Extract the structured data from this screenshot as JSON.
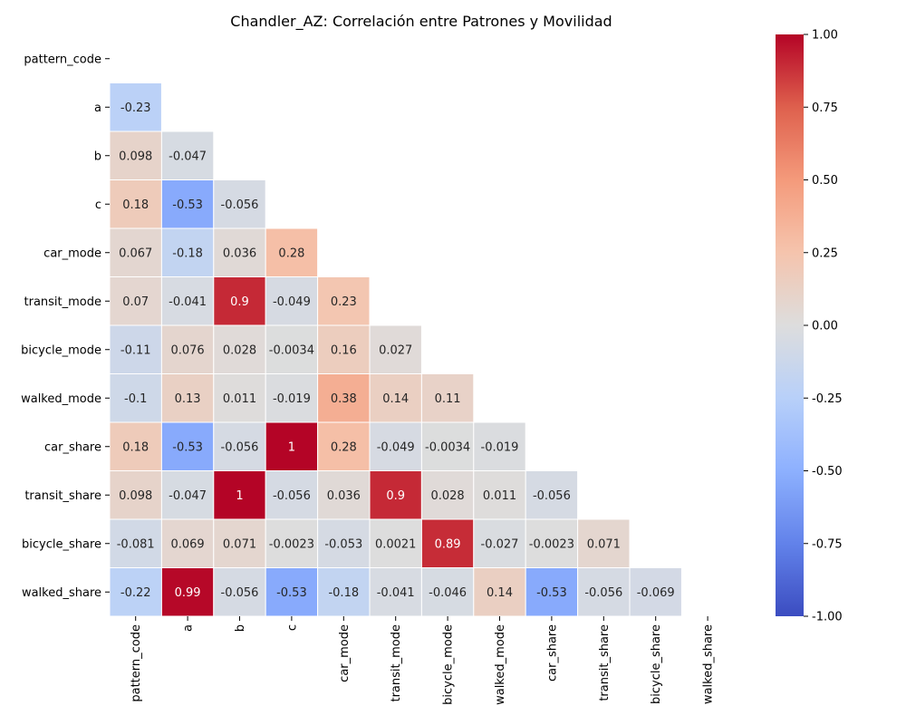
{
  "chart_data": {
    "type": "heatmap",
    "title": "Chandler_AZ: Correlación entre Patrones y Movilidad",
    "xlabel": "",
    "ylabel": "",
    "mask": "upper-triangle-including-diagonal",
    "labels": [
      "pattern_code",
      "a",
      "b",
      "c",
      "car_mode",
      "transit_mode",
      "bicycle_mode",
      "walked_mode",
      "car_share",
      "transit_share",
      "bicycle_share",
      "walked_share"
    ],
    "values": [
      [
        null,
        null,
        null,
        null,
        null,
        null,
        null,
        null,
        null,
        null,
        null,
        null
      ],
      [
        -0.23,
        null,
        null,
        null,
        null,
        null,
        null,
        null,
        null,
        null,
        null,
        null
      ],
      [
        0.098,
        -0.047,
        null,
        null,
        null,
        null,
        null,
        null,
        null,
        null,
        null,
        null
      ],
      [
        0.18,
        -0.53,
        -0.056,
        null,
        null,
        null,
        null,
        null,
        null,
        null,
        null,
        null
      ],
      [
        0.067,
        -0.18,
        0.036,
        0.28,
        null,
        null,
        null,
        null,
        null,
        null,
        null,
        null
      ],
      [
        0.07,
        -0.041,
        0.9,
        -0.049,
        0.23,
        null,
        null,
        null,
        null,
        null,
        null,
        null
      ],
      [
        -0.11,
        0.076,
        0.028,
        -0.0034,
        0.16,
        0.027,
        null,
        null,
        null,
        null,
        null,
        null
      ],
      [
        -0.1,
        0.13,
        0.011,
        -0.019,
        0.38,
        0.14,
        0.11,
        null,
        null,
        null,
        null,
        null
      ],
      [
        0.18,
        -0.53,
        -0.056,
        1,
        0.28,
        -0.049,
        -0.0034,
        -0.019,
        null,
        null,
        null,
        null
      ],
      [
        0.098,
        -0.047,
        1,
        -0.056,
        0.036,
        0.9,
        0.028,
        0.011,
        -0.056,
        null,
        null,
        null
      ],
      [
        -0.081,
        0.069,
        0.071,
        -0.0023,
        -0.053,
        0.0021,
        0.89,
        -0.027,
        -0.0023,
        0.071,
        null,
        null
      ],
      [
        -0.22,
        0.99,
        -0.056,
        -0.53,
        -0.18,
        -0.041,
        -0.046,
        0.14,
        -0.53,
        -0.056,
        -0.069,
        null
      ]
    ],
    "colorbar": {
      "colormap": "coolwarm",
      "range": [
        -1,
        1
      ],
      "ticks": [
        "-1.00",
        "-0.75",
        "-0.50",
        "-0.25",
        "0.00",
        "0.25",
        "0.50",
        "0.75",
        "1.00"
      ]
    }
  }
}
